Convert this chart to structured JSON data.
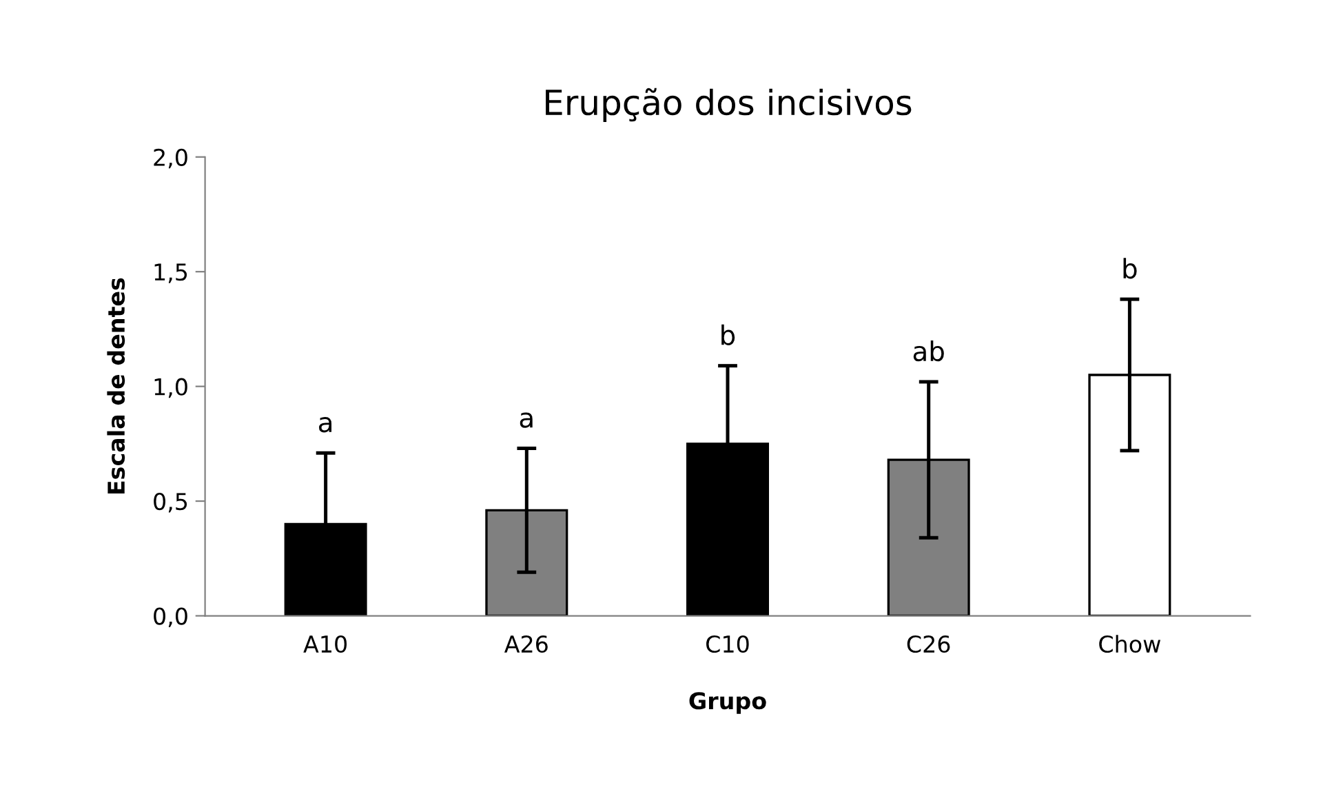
{
  "chart_data": {
    "type": "bar",
    "title": "Erupção dos incisivos",
    "xlabel": "Grupo",
    "ylabel": "Escala de dentes",
    "categories": [
      "A10",
      "A26",
      "C10",
      "C26",
      "Chow"
    ],
    "values": [
      0.4,
      0.46,
      0.75,
      0.68,
      1.05
    ],
    "errors": [
      0.31,
      0.27,
      0.34,
      0.34,
      0.33
    ],
    "colors": [
      "#000000",
      "#808080",
      "#000000",
      "#808080",
      "#ffffff"
    ],
    "ylim": [
      0,
      2
    ],
    "yticks": [
      {
        "value": 0,
        "label": "0,0"
      },
      {
        "value": 0.5,
        "label": "0,5"
      },
      {
        "value": 1,
        "label": "1,0"
      },
      {
        "value": 1.5,
        "label": "1,5"
      },
      {
        "value": 2,
        "label": "2,0"
      }
    ],
    "annotations": [
      "a",
      "a",
      "b",
      "ab",
      "b"
    ],
    "grid": false
  }
}
